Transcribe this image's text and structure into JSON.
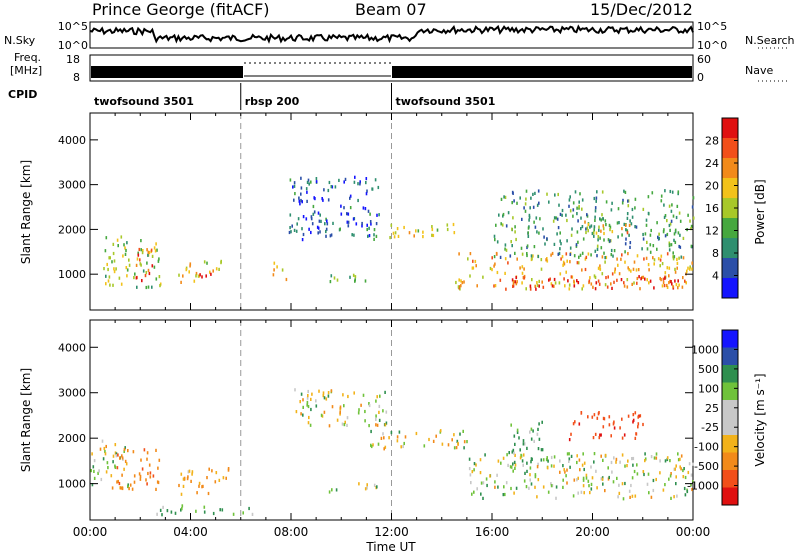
{
  "header": {
    "station": "Prince George (fitACF)",
    "beam": "Beam 07",
    "date": "15/Dec/2012"
  },
  "noise_panel": {
    "left_label": "N.Sky",
    "left_ticks": [
      "10^5",
      "10^0"
    ],
    "right_label": "N.Search",
    "right_ticks": [
      "10^5",
      "10^0"
    ]
  },
  "freq_panel": {
    "left_label_line1": "Freq.",
    "left_label_line2": "[MHz]",
    "left_ticks": [
      "18",
      "8"
    ],
    "right_label": "Nave",
    "right_ticks": [
      "60",
      "0"
    ]
  },
  "cpid": {
    "label": "CPID",
    "segments": [
      {
        "label": "twofsound 3501",
        "start_h": 0,
        "end_h": 6
      },
      {
        "label": "rbsp 200",
        "start_h": 6,
        "end_h": 12
      },
      {
        "label": "twofsound 3501",
        "start_h": 12,
        "end_h": 24
      }
    ]
  },
  "x_axis": {
    "label": "Time UT",
    "ticks": [
      "00:00",
      "04:00",
      "08:00",
      "12:00",
      "16:00",
      "20:00",
      "00:00"
    ]
  },
  "power_colorbar": {
    "label": "Power [dB]",
    "ticks": [
      "28",
      "24",
      "20",
      "16",
      "12",
      "8",
      "4"
    ]
  },
  "velocity_colorbar": {
    "label": "Velocity [m s⁻¹]",
    "ticks": [
      "1000",
      "500",
      "100",
      "25",
      "-25",
      "-100",
      "-500",
      "-1000"
    ]
  },
  "chart_data": [
    {
      "type": "heatmap",
      "title": "Power",
      "xlabel": "Time UT",
      "ylabel": "Slant Range [km]",
      "y_ticks": [
        1000,
        2000,
        3000,
        4000
      ],
      "xlim_hours": [
        0,
        24
      ],
      "ylim_km": [
        200,
        4600
      ],
      "colorbar": {
        "label": "Power [dB]",
        "range": [
          0,
          30
        ]
      },
      "regions": [
        {
          "t0": 0.5,
          "t1": 2.8,
          "r0": 700,
          "r1": 1900,
          "value": 14
        },
        {
          "t0": 1.8,
          "t1": 2.5,
          "r0": 800,
          "r1": 1600,
          "value": 26
        },
        {
          "t0": 3.5,
          "t1": 5.2,
          "r0": 850,
          "r1": 1350,
          "value": 18
        },
        {
          "t0": 4.3,
          "t1": 5.0,
          "r0": 900,
          "r1": 1150,
          "value": 26
        },
        {
          "t0": 7.2,
          "t1": 7.8,
          "r0": 900,
          "r1": 1300,
          "value": 18
        },
        {
          "t0": 7.8,
          "t1": 11.5,
          "r0": 1800,
          "r1": 3200,
          "value": 6
        },
        {
          "t0": 9.5,
          "t1": 11.5,
          "r0": 850,
          "r1": 1050,
          "value": 12
        },
        {
          "t0": 11.5,
          "t1": 14.5,
          "r0": 1850,
          "r1": 2150,
          "value": 16
        },
        {
          "t0": 14.5,
          "t1": 24.0,
          "r0": 700,
          "r1": 1500,
          "value": 20
        },
        {
          "t0": 16.5,
          "t1": 23.5,
          "r0": 700,
          "r1": 1000,
          "value": 27
        },
        {
          "t0": 16.0,
          "t1": 24.0,
          "r0": 1400,
          "r1": 2900,
          "value": 10
        },
        {
          "t0": 19.5,
          "t1": 21.5,
          "r0": 1900,
          "r1": 2200,
          "value": 19
        }
      ]
    },
    {
      "type": "heatmap",
      "title": "Velocity",
      "xlabel": "Time UT",
      "ylabel": "Slant Range [km]",
      "y_ticks": [
        1000,
        2000,
        3000,
        4000
      ],
      "xlim_hours": [
        0,
        24
      ],
      "ylim_km": [
        200,
        4600
      ],
      "colorbar": {
        "label": "Velocity [m s⁻¹]",
        "range": [
          -1000,
          1000
        ]
      },
      "regions": [
        {
          "t0": 0.0,
          "t1": 1.5,
          "r0": 900,
          "r1": 2000,
          "value": 0
        },
        {
          "t0": 1.0,
          "t1": 2.8,
          "r0": 900,
          "r1": 1800,
          "value": -400
        },
        {
          "t0": 3.5,
          "t1": 5.5,
          "r0": 800,
          "r1": 1400,
          "value": -150
        },
        {
          "t0": 2.5,
          "t1": 6.5,
          "r0": 350,
          "r1": 550,
          "value": 60
        },
        {
          "t0": 8.0,
          "t1": 11.8,
          "r0": 2300,
          "r1": 3100,
          "value": 0
        },
        {
          "t0": 11.0,
          "t1": 15.0,
          "r0": 1800,
          "r1": 2200,
          "value": 0
        },
        {
          "t0": 15.0,
          "t1": 24.0,
          "r0": 700,
          "r1": 1700,
          "value": 0
        },
        {
          "t0": 16.5,
          "t1": 18.0,
          "r0": 1400,
          "r1": 2400,
          "value": 120
        },
        {
          "t0": 19.0,
          "t1": 22.0,
          "r0": 2000,
          "r1": 2600,
          "value": -900
        },
        {
          "t0": 9.5,
          "t1": 11.5,
          "r0": 850,
          "r1": 1050,
          "value": 60
        }
      ]
    }
  ]
}
